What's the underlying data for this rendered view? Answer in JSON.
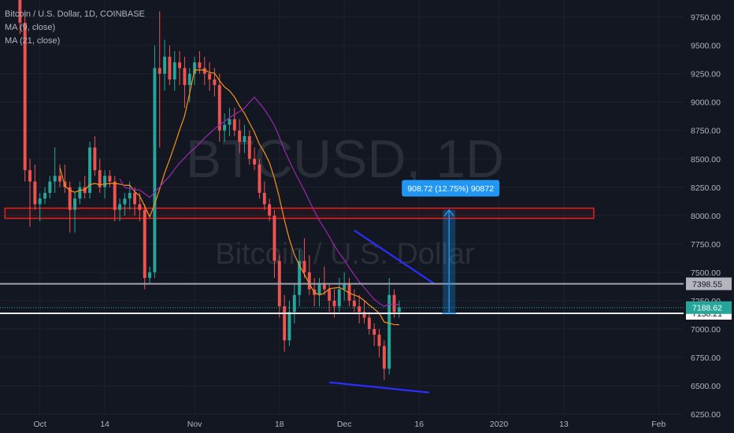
{
  "legend": {
    "symbol": "Bitcoin / U.S. Dollar, 1D, COINBASE",
    "ma1": "MA (9, close)",
    "ma2": "MA (21, close)"
  },
  "watermark": {
    "ticker": "BTCUSD, 1D",
    "name": "Bitcoin / U.S. Dollar"
  },
  "colors": {
    "background": "#131722",
    "up": "#26a69a",
    "down": "#ef5350",
    "ma1": "#f7931a",
    "ma2": "#9c27b0",
    "zone": "#e01e1e",
    "trend": "#2a2fff",
    "measure": "#2196f3",
    "hline": "#d1d4dc"
  },
  "chart_data": {
    "type": "candlestick",
    "ylim": [
      6250,
      9900
    ],
    "y_ticks": [
      "9750.00",
      "9500.00",
      "9250.00",
      "9000.00",
      "8750.00",
      "8500.00",
      "8250.00",
      "8000.00",
      "7750.00",
      "7500.00",
      "7250.00",
      "7000.00",
      "6750.00",
      "6500.00",
      "6250.00"
    ],
    "x_ticks": [
      {
        "label": "Oct",
        "day": 4
      },
      {
        "label": "14",
        "day": 17
      },
      {
        "label": "Nov",
        "day": 35
      },
      {
        "label": "18",
        "day": 52
      },
      {
        "label": "Dec",
        "day": 65
      },
      {
        "label": "16",
        "day": 80
      },
      {
        "label": "2020",
        "day": 96
      },
      {
        "label": "13",
        "day": 109
      },
      {
        "label": "Feb",
        "day": 128
      }
    ],
    "xlim": [
      -4,
      133
    ],
    "candles": [
      [
        9900,
        10100,
        9600,
        9700
      ],
      [
        9700,
        9800,
        8300,
        8400
      ],
      [
        8400,
        8500,
        7900,
        8300
      ],
      [
        8300,
        8450,
        8050,
        8100
      ],
      [
        8100,
        8200,
        7950,
        8150
      ],
      [
        8150,
        8250,
        8100,
        8200
      ],
      [
        8200,
        8350,
        8150,
        8300
      ],
      [
        8300,
        8600,
        8200,
        8350
      ],
      [
        8350,
        8450,
        8250,
        8300
      ],
      [
        8300,
        8450,
        8200,
        8250
      ],
      [
        8250,
        8300,
        7850,
        8050
      ],
      [
        8050,
        8200,
        7850,
        8150
      ],
      [
        8150,
        8300,
        8100,
        8250
      ],
      [
        8250,
        8350,
        8150,
        8200
      ],
      [
        8200,
        8650,
        8150,
        8600
      ],
      [
        8600,
        8700,
        8350,
        8400
      ],
      [
        8400,
        8500,
        8200,
        8250
      ],
      [
        8250,
        8400,
        8150,
        8350
      ],
      [
        8350,
        8400,
        8250,
        8300
      ],
      [
        8300,
        8350,
        7950,
        8050
      ],
      [
        8050,
        8150,
        7950,
        8100
      ],
      [
        8100,
        8200,
        8000,
        8150
      ],
      [
        8150,
        8300,
        8050,
        8200
      ],
      [
        8200,
        8250,
        8000,
        8100
      ],
      [
        8100,
        8200,
        7950,
        8050
      ],
      [
        8050,
        8100,
        7350,
        7450
      ],
      [
        7450,
        7550,
        7400,
        7500
      ],
      [
        7500,
        9500,
        7450,
        9300
      ],
      [
        9300,
        9800,
        8600,
        9250
      ],
      [
        9250,
        9550,
        9100,
        9400
      ],
      [
        9400,
        9500,
        9150,
        9200
      ],
      [
        9200,
        9450,
        9100,
        9350
      ],
      [
        9350,
        9450,
        9150,
        9300
      ],
      [
        9300,
        9400,
        8950,
        9150
      ],
      [
        9150,
        9300,
        9000,
        9250
      ],
      [
        9250,
        9400,
        9150,
        9350
      ],
      [
        9350,
        9450,
        9250,
        9300
      ],
      [
        9300,
        9400,
        9150,
        9250
      ],
      [
        9250,
        9350,
        9100,
        9200
      ],
      [
        9200,
        9300,
        9050,
        9150
      ],
      [
        9150,
        9250,
        8650,
        8750
      ],
      [
        8750,
        8900,
        8650,
        8800
      ],
      [
        8800,
        8950,
        8700,
        8850
      ],
      [
        8850,
        8950,
        8700,
        8750
      ],
      [
        8750,
        8850,
        8550,
        8650
      ],
      [
        8650,
        8800,
        8550,
        8700
      ],
      [
        8700,
        8750,
        8450,
        8500
      ],
      [
        8500,
        8600,
        8400,
        8450
      ],
      [
        8450,
        8500,
        8150,
        8200
      ],
      [
        8200,
        8300,
        8050,
        8100
      ],
      [
        8100,
        8150,
        7950,
        8000
      ],
      [
        8000,
        8050,
        7450,
        7600
      ],
      [
        7600,
        7650,
        7100,
        7200
      ],
      [
        7200,
        7300,
        6800,
        6900
      ],
      [
        6900,
        7250,
        6850,
        7150
      ],
      [
        7150,
        7400,
        7050,
        7300
      ],
      [
        7300,
        7700,
        7200,
        7600
      ],
      [
        7600,
        7800,
        7450,
        7500
      ],
      [
        7500,
        7650,
        7300,
        7350
      ],
      [
        7350,
        7450,
        7200,
        7300
      ],
      [
        7300,
        7450,
        7200,
        7400
      ],
      [
        7400,
        7550,
        7300,
        7350
      ],
      [
        7350,
        7400,
        7150,
        7250
      ],
      [
        7250,
        7350,
        7100,
        7200
      ],
      [
        7200,
        7450,
        7150,
        7350
      ],
      [
        7350,
        7500,
        7250,
        7400
      ],
      [
        7400,
        7450,
        7200,
        7250
      ],
      [
        7250,
        7350,
        7150,
        7200
      ],
      [
        7200,
        7300,
        7050,
        7150
      ],
      [
        7150,
        7250,
        7050,
        7100
      ],
      [
        7100,
        7150,
        6950,
        7000
      ],
      [
        7000,
        7050,
        6850,
        6950
      ],
      [
        6950,
        7000,
        6750,
        6850
      ],
      [
        6850,
        6900,
        6550,
        6650
      ],
      [
        6650,
        7450,
        6600,
        7300
      ],
      [
        7300,
        7350,
        7100,
        7150
      ],
      [
        7150,
        7250,
        7100,
        7190
      ]
    ],
    "start_day": 0,
    "ma_periods": [
      9,
      21
    ],
    "ma_labels": [
      "MA (9, close)",
      "MA (21, close)"
    ],
    "resistance_zone": {
      "y_low": 7975,
      "y_high": 8065,
      "x_start": -3,
      "x_end": 115
    },
    "hlines": [
      {
        "value": 7398.55,
        "label": "7398.55",
        "style": "gray"
      },
      {
        "value": 7138.21,
        "label": "7138.21",
        "style": "white"
      }
    ],
    "current_price": {
      "value": 7188.62,
      "label": "7188.62"
    },
    "trendlines": [
      {
        "x1": 67,
        "y1": 7870,
        "x2": 83,
        "y2": 7400
      },
      {
        "x1": 62,
        "y1": 6530,
        "x2": 82,
        "y2": 6440
      }
    ],
    "measure": {
      "x": 86,
      "from": 7140,
      "to": 8050,
      "label": "908.72 (12.75%) 90872"
    }
  }
}
